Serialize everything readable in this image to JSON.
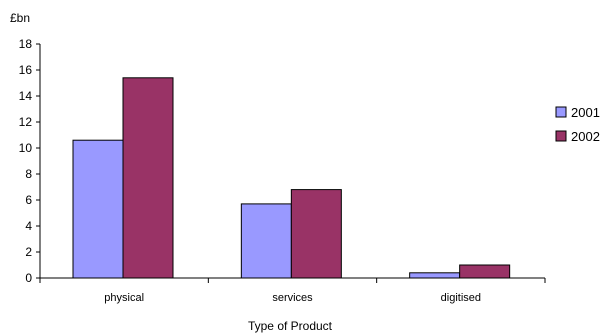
{
  "chart_data": {
    "type": "bar",
    "ylabel": "£bn",
    "xlabel": "Type of Product",
    "categories": [
      "physical",
      "services",
      "digitised"
    ],
    "series": [
      {
        "name": "2001",
        "values": [
          10.6,
          5.7,
          0.4
        ],
        "color": "#9999ff"
      },
      {
        "name": "2002",
        "values": [
          15.4,
          6.8,
          1.0
        ],
        "color": "#993366"
      }
    ],
    "ylim": [
      0,
      18
    ],
    "yticks": [
      0,
      2,
      4,
      6,
      8,
      10,
      12,
      14,
      16,
      18
    ],
    "grid": false,
    "legend_position": "right"
  }
}
